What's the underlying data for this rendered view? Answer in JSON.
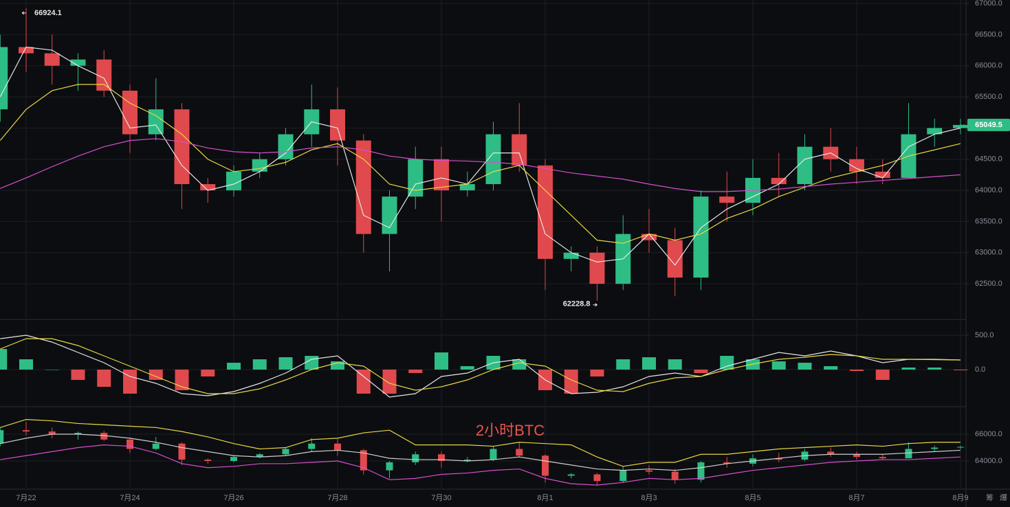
{
  "chart_data": [
    {
      "type": "candlestick",
      "categories": [
        null,
        "7月22",
        null,
        null,
        null,
        "7月24",
        null,
        null,
        null,
        "7月26",
        null,
        null,
        null,
        "7月28",
        null,
        null,
        null,
        "7月30",
        null,
        null,
        null,
        "8月1",
        null,
        null,
        null,
        "8月3",
        null,
        null,
        null,
        "8月5",
        null,
        null,
        null,
        "8月7",
        null,
        null,
        null,
        "8月9"
      ],
      "open": [
        65300,
        66300,
        66200,
        66000,
        66100,
        65600,
        64900,
        65300,
        64100,
        64000,
        64300,
        64500,
        64900,
        65300,
        64800,
        63300,
        63900,
        64500,
        64000,
        64100,
        64900,
        64400,
        62900,
        63000,
        62500,
        63300,
        63200,
        62600,
        63900,
        63800,
        64200,
        64100,
        64700,
        64500,
        64300,
        64200,
        64900,
        65000
      ],
      "high": [
        66500,
        66924.1,
        66500,
        66200,
        66250,
        65700,
        65800,
        65400,
        64200,
        64400,
        64600,
        65000,
        65700,
        65650,
        64900,
        64000,
        64700,
        64700,
        64300,
        65100,
        65400,
        64500,
        63100,
        63100,
        63600,
        63700,
        63400,
        64000,
        64300,
        64500,
        64600,
        64900,
        65000,
        64700,
        64500,
        65400,
        65150,
        65150
      ],
      "low": [
        65100,
        65900,
        65700,
        65600,
        65500,
        64600,
        64800,
        63700,
        63800,
        63900,
        64200,
        64400,
        64700,
        64400,
        63000,
        62700,
        63700,
        63500,
        63900,
        64000,
        64300,
        62400,
        62700,
        62228.8,
        62400,
        63000,
        62300,
        62400,
        63500,
        63600,
        63900,
        64000,
        64300,
        64100,
        64100,
        64200,
        64700,
        64900
      ],
      "close": [
        66300,
        66200,
        66000,
        66100,
        65600,
        64900,
        65300,
        64100,
        64000,
        64300,
        64500,
        64900,
        65300,
        64800,
        63300,
        63900,
        64500,
        64000,
        64100,
        64900,
        64400,
        62900,
        63000,
        62500,
        63300,
        63200,
        62600,
        63900,
        63800,
        64200,
        64100,
        64700,
        64500,
        64300,
        64200,
        64900,
        65000,
        65049.5
      ],
      "up_color": "#2ebd85",
      "down_color": "#e0494d",
      "series": [
        {
          "color": "#e6e6e6",
          "values": [
            65500,
            66300,
            66250,
            66000,
            65800,
            65000,
            65050,
            64400,
            64000,
            64100,
            64300,
            64600,
            65100,
            65000,
            63600,
            63400,
            64100,
            64200,
            64100,
            64600,
            64600,
            63300,
            63000,
            62850,
            62900,
            63300,
            62800,
            63400,
            63700,
            63900,
            64100,
            64500,
            64600,
            64350,
            64200,
            64700,
            64900,
            65000
          ]
        },
        {
          "color": "#e8d845",
          "values": [
            64800,
            65300,
            65600,
            65700,
            65700,
            65400,
            65200,
            64900,
            64500,
            64300,
            64350,
            64450,
            64650,
            64750,
            64500,
            64100,
            64000,
            64050,
            64100,
            64300,
            64400,
            64000,
            63600,
            63200,
            63150,
            63300,
            63200,
            63300,
            63550,
            63700,
            63900,
            64050,
            64200,
            64300,
            64400,
            64550,
            64650,
            64750
          ]
        },
        {
          "color": "#d94fd1",
          "values": [
            64030,
            64200,
            64380,
            64550,
            64700,
            64800,
            64830,
            64780,
            64680,
            64620,
            64600,
            64620,
            64680,
            64700,
            64650,
            64550,
            64500,
            64480,
            64470,
            64450,
            64420,
            64350,
            64280,
            64230,
            64180,
            64100,
            64030,
            63980,
            63980,
            64000,
            64020,
            64060,
            64100,
            64130,
            64160,
            64190,
            64220,
            64250
          ]
        }
      ],
      "ylim": [
        61950,
        67000
      ],
      "yticks": [
        {
          "value": 62500,
          "label": "62500.0"
        },
        {
          "value": 63000,
          "label": "63000.0"
        },
        {
          "value": 63500,
          "label": "63500.0"
        },
        {
          "value": 64000,
          "label": "64000.0"
        },
        {
          "value": 64500,
          "label": "64500.0"
        },
        {
          "value": 65000,
          "label": "65000.0"
        },
        {
          "value": 65500,
          "label": "65500.0"
        },
        {
          "value": 66000,
          "label": "66000.0"
        },
        {
          "value": 66500,
          "label": "66500.0"
        },
        {
          "value": 67000,
          "label": "67000.0"
        }
      ],
      "grid": true
    },
    {
      "type": "macd",
      "values": [
        300,
        150,
        0,
        -150,
        -250,
        -350,
        -150,
        -300,
        -100,
        100,
        150,
        180,
        200,
        120,
        -350,
        -350,
        -50,
        250,
        50,
        200,
        150,
        -300,
        -350,
        -100,
        150,
        180,
        150,
        -50,
        200,
        150,
        120,
        100,
        50,
        -20,
        -150,
        30,
        30,
        -10
      ],
      "up_color": "#2ebd85",
      "down_color": "#e0494d",
      "series": [
        {
          "color": "#e6e6e6",
          "values": [
            450,
            500,
            400,
            250,
            100,
            -100,
            -200,
            -350,
            -380,
            -320,
            -200,
            -50,
            150,
            200,
            -100,
            -400,
            -350,
            -100,
            -50,
            100,
            150,
            -150,
            -350,
            -330,
            -250,
            -100,
            -50,
            -100,
            50,
            150,
            250,
            200,
            270,
            200,
            100,
            150,
            150,
            140
          ]
        },
        {
          "color": "#e8d845",
          "values": [
            300,
            450,
            450,
            350,
            200,
            50,
            -100,
            -250,
            -350,
            -350,
            -280,
            -150,
            0,
            100,
            50,
            -200,
            -300,
            -250,
            -150,
            0,
            100,
            50,
            -150,
            -300,
            -320,
            -200,
            -120,
            -100,
            0,
            80,
            150,
            180,
            220,
            200,
            150,
            150,
            145,
            140
          ]
        }
      ],
      "ylim": [
        -520,
        680
      ],
      "yticks": [
        {
          "value": 0,
          "label": "0.0"
        },
        {
          "value": 500,
          "label": "500.0"
        }
      ],
      "grid": true
    },
    {
      "type": "bollinger",
      "annotation": "2小时BTC",
      "series": [
        {
          "color": "#e8d845",
          "values": [
            66500,
            67100,
            67000,
            66800,
            66700,
            66600,
            66500,
            66200,
            65800,
            65300,
            64900,
            65000,
            65600,
            65700,
            66100,
            66300,
            65200,
            65200,
            65200,
            65100,
            65400,
            65300,
            65200,
            64300,
            63600,
            63900,
            63900,
            64500,
            64500,
            64700,
            64900,
            65000,
            65100,
            65200,
            65100,
            65300,
            65400,
            65400
          ]
        },
        {
          "color": "#cfcfcf",
          "values": [
            65300,
            65700,
            66000,
            66000,
            65900,
            65700,
            65400,
            65000,
            64700,
            64400,
            64300,
            64400,
            64700,
            64800,
            64600,
            64200,
            64100,
            64100,
            64000,
            64100,
            64300,
            64000,
            63700,
            63400,
            63300,
            63400,
            63300,
            63500,
            63800,
            64000,
            64200,
            64400,
            64500,
            64500,
            64500,
            64600,
            64700,
            64800
          ]
        },
        {
          "color": "#d94fd1",
          "values": [
            64100,
            64400,
            64700,
            65000,
            65200,
            65100,
            64600,
            63800,
            63500,
            63600,
            63800,
            63800,
            63900,
            64000,
            63500,
            62600,
            62700,
            63000,
            63100,
            63300,
            63400,
            62700,
            62300,
            62200,
            62400,
            62700,
            62600,
            62700,
            63000,
            63300,
            63500,
            63700,
            63900,
            64000,
            64100,
            64100,
            64200,
            64300
          ]
        }
      ],
      "ylim": [
        62000,
        67900
      ],
      "yticks": [
        {
          "value": 64000,
          "label": "64000.0"
        },
        {
          "value": 66000,
          "label": "66000.0"
        }
      ],
      "grid": true
    }
  ],
  "toolbar": [
    "筹",
    "爆"
  ]
}
